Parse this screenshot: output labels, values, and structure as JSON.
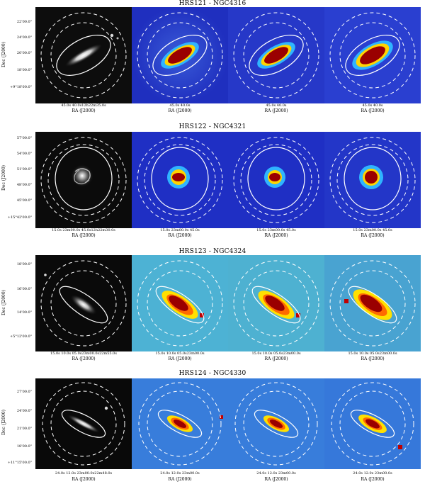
{
  "figure": {
    "rows": [
      {
        "title": "HRS121 - NGC4316",
        "ylabel": "Dec (J2000)",
        "yticks": [
          "22'00.0\"",
          "24'00.0\"",
          "20'00.0\"",
          "18'00.0\"",
          "+9°18'00.0\""
        ],
        "panels": [
          {
            "xticks": "45.0s    40.0s12h22m35.0s",
            "xlabel": "RA (J2000)"
          },
          {
            "xticks": "45.0s    40.0s",
            "xlabel": "RA (J2000)"
          },
          {
            "xticks": "45.0s    40.0s",
            "xlabel": "RA (J2000)"
          },
          {
            "xticks": "45.0s    40.0s",
            "xlabel": "RA (J2000)"
          }
        ]
      },
      {
        "title": "HRS122 - NGC4321",
        "ylabel": "Dec (J2000)",
        "yticks": [
          "57'00.0\"",
          "54'00.0\"",
          "51'00.0\"",
          "48'00.0\"",
          "45'00.0\"",
          "+15°42'00.0\""
        ],
        "panels": [
          {
            "xticks": "15.0s  23m00.0s 45.0s12h22m30.0s",
            "xlabel": "RA (J2000)"
          },
          {
            "xticks": "15.0s  23m00.0s 45.0s",
            "xlabel": "RA (J2000)"
          },
          {
            "xticks": "15.0s  23m00.0s 45.0s",
            "xlabel": "RA (J2000)"
          },
          {
            "xticks": "15.0s  23m00.0s 45.0s",
            "xlabel": "RA (J2000)"
          }
        ]
      },
      {
        "title": "HRS123 - NGC4324",
        "ylabel": "Dec (J2000)",
        "yticks": [
          "18'00.0\"",
          "16'00.0\"",
          "14'00.0\"",
          "+5°12'00.0\""
        ],
        "panels": [
          {
            "xticks": "15.0s  10.0s 05.0s23m00.0s22m55.0s",
            "xlabel": "RA (J2000)"
          },
          {
            "xticks": "15.0s  10.0s 05.0s23m00.0s",
            "xlabel": "RA (J2000)"
          },
          {
            "xticks": "15.0s  10.0s 05.0s23m00.0s",
            "xlabel": "RA (J2000)"
          },
          {
            "xticks": "15.0s  10.0s 05.0s23m00.0s",
            "xlabel": "RA (J2000)"
          }
        ]
      },
      {
        "title": "HRS124 - NGC4330",
        "ylabel": "Dec (J2000)",
        "yticks": [
          "27'00.0\"",
          "24'00.0\"",
          "21'00.0\"",
          "18'00.0\"",
          "+11°15'00.0\""
        ],
        "panels": [
          {
            "xticks": "24.0s  12.0s 23m00.0s22m48.0s",
            "xlabel": "RA (J2000)"
          },
          {
            "xticks": "24.0s  12.0s 23m00.0s",
            "xlabel": "RA (J2000)"
          },
          {
            "xticks": "24.0s  12.0s 23m00.0s",
            "xlabel": "RA (J2000)"
          },
          {
            "xticks": "24.0s  12.0s 23m00.0s",
            "xlabel": "RA (J2000)"
          }
        ]
      }
    ]
  }
}
